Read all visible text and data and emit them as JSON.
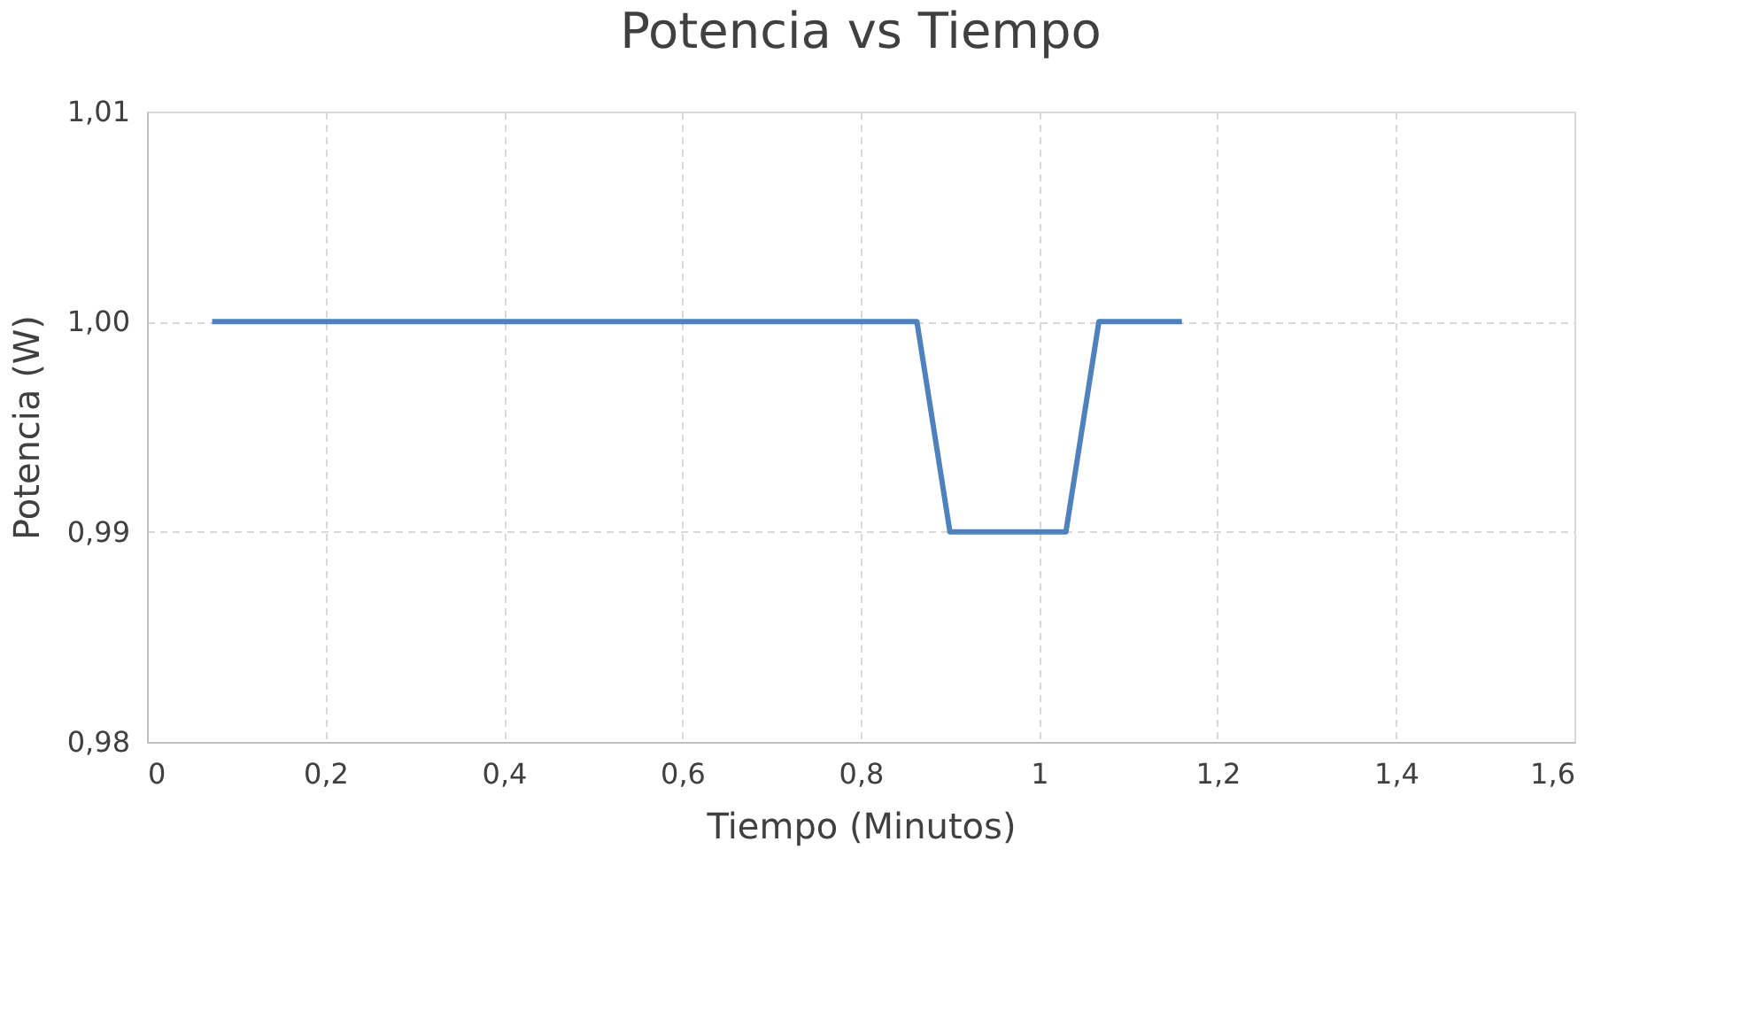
{
  "chart_data": {
    "type": "line",
    "title": "Potencia vs Tiempo",
    "xlabel": "Tiempo (Minutos)",
    "ylabel": "Potencia (W)",
    "x": [
      0.073,
      0.863,
      0.9,
      1.03,
      1.067,
      1.16
    ],
    "series": [
      {
        "color": "#4f81bd",
        "values": [
          1.0,
          1.0,
          0.99,
          0.99,
          1.0,
          1.0
        ]
      }
    ],
    "xlim": [
      0,
      1.6
    ],
    "ylim": [
      0.98,
      1.01
    ],
    "xticks": [
      0,
      {
        "value": 0.2,
        "label": "0,2"
      },
      {
        "value": 0.4,
        "label": "0,4"
      },
      {
        "value": 0.6,
        "label": "0,6"
      },
      {
        "value": 0.8,
        "label": "0,8"
      },
      1,
      {
        "value": 1.2,
        "label": "1,2"
      },
      {
        "value": 1.4,
        "label": "1,4"
      },
      {
        "value": 1.6,
        "label": "1,6"
      }
    ],
    "yticks": [
      {
        "value": 0.98,
        "label": "0,98"
      },
      {
        "value": 0.99,
        "label": "0,99"
      },
      {
        "value": 1.0,
        "label": "1,00"
      },
      {
        "value": 1.01,
        "label": "1,01"
      }
    ],
    "grid": true,
    "legend": false,
    "marker": "none",
    "line_style": "solid"
  }
}
